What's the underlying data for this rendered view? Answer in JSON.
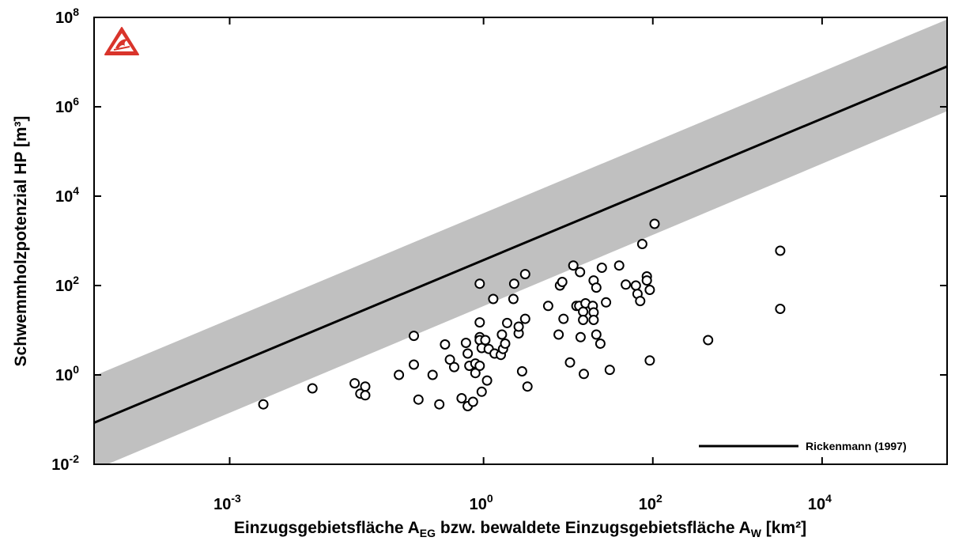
{
  "colors": {
    "band": "#c0c0c0",
    "line": "#000000",
    "marker_stroke": "#000000",
    "logo": "#d9342b"
  },
  "chart_data": {
    "type": "scatter",
    "title": "",
    "xlabel": {
      "parts": [
        {
          "text": "Einzugsgebietsfläche A",
          "sub": false
        },
        {
          "text": "EG",
          "sub": true
        },
        {
          "text": " bzw. bewaldete Einzugsgebietsfläche A",
          "sub": false
        },
        {
          "text": "W",
          "sub": true
        },
        {
          "text": " [km²]",
          "sub": false
        }
      ]
    },
    "ylabel": "Schwemmholzpotenzial HP [m³]",
    "xscale": "log",
    "yscale": "log",
    "xlim": [
      2.5e-05,
      300000
    ],
    "ylim": [
      0.01,
      100000000
    ],
    "xticks": [
      {
        "base": "10",
        "exp": "-3",
        "value": 0.001
      },
      {
        "base": "10",
        "exp": "0",
        "value": 1
      },
      {
        "base": "10",
        "exp": "2",
        "value": 100
      },
      {
        "base": "10",
        "exp": "4",
        "value": 10000
      }
    ],
    "yticks": [
      {
        "base": "10",
        "exp": "-2",
        "value": 0.01
      },
      {
        "base": "10",
        "exp": "0",
        "value": 1
      },
      {
        "base": "10",
        "exp": "2",
        "value": 100
      },
      {
        "base": "10",
        "exp": "4",
        "value": 10000
      },
      {
        "base": "10",
        "exp": "6",
        "value": 1000000
      },
      {
        "base": "10",
        "exp": "8",
        "value": 100000000
      }
    ],
    "grid": false,
    "legend": {
      "position": "bottom-right",
      "entries": [
        {
          "label": "Rickenmann (1997)",
          "style": "line"
        }
      ]
    },
    "reference_line": {
      "name": "Rickenmann (1997)",
      "points": [
        [
          2.5e-05,
          0.085
        ],
        [
          300000,
          8000000
        ]
      ]
    },
    "band": {
      "upper": [
        [
          2.5e-05,
          0.95
        ],
        [
          300000,
          90000000
        ]
      ],
      "lower": [
        [
          2.5e-05,
          0.0075
        ],
        [
          300000,
          800000
        ]
      ]
    },
    "series": [
      {
        "points": [
          [
            0.0025,
            0.22
          ],
          [
            0.0095,
            0.5
          ],
          [
            0.03,
            0.65
          ],
          [
            0.035,
            0.38
          ],
          [
            0.04,
            0.55
          ],
          [
            0.04,
            0.35
          ],
          [
            0.1,
            1.0
          ],
          [
            0.15,
            1.7
          ],
          [
            0.15,
            7.5
          ],
          [
            0.17,
            0.28
          ],
          [
            0.25,
            1.0
          ],
          [
            0.3,
            0.22
          ],
          [
            0.35,
            4.8
          ],
          [
            0.4,
            2.2
          ],
          [
            0.45,
            1.5
          ],
          [
            0.55,
            0.3
          ],
          [
            0.62,
            5.2
          ],
          [
            0.65,
            3.0
          ],
          [
            0.65,
            0.2
          ],
          [
            0.68,
            1.6
          ],
          [
            0.75,
            0.25
          ],
          [
            0.8,
            1.8
          ],
          [
            0.8,
            1.1
          ],
          [
            0.9,
            1.6
          ],
          [
            0.9,
            7.0
          ],
          [
            0.9,
            6.0
          ],
          [
            0.95,
            4.0
          ],
          [
            0.9,
            15.0
          ],
          [
            0.95,
            0.42
          ],
          [
            0.9,
            110.0
          ],
          [
            1.05,
            6.0
          ],
          [
            1.1,
            0.75
          ],
          [
            1.15,
            3.8
          ],
          [
            1.3,
            50.0
          ],
          [
            1.35,
            3.0
          ],
          [
            1.6,
            2.8
          ],
          [
            1.65,
            8.0
          ],
          [
            1.7,
            3.8
          ],
          [
            1.8,
            5.0
          ],
          [
            1.9,
            14.5
          ],
          [
            2.3,
            110.0
          ],
          [
            2.25,
            50.0
          ],
          [
            2.6,
            8.5
          ],
          [
            2.6,
            12.0
          ],
          [
            2.85,
            1.2
          ],
          [
            3.1,
            180.0
          ],
          [
            3.1,
            18.0
          ],
          [
            3.3,
            0.55
          ],
          [
            5.8,
            35.0
          ],
          [
            7.7,
            8.0
          ],
          [
            8.0,
            100.0
          ],
          [
            8.5,
            120.0
          ],
          [
            8.8,
            18.0
          ],
          [
            10.5,
            1.9
          ],
          [
            11.5,
            280.0
          ],
          [
            12.5,
            35.0
          ],
          [
            13.8,
            200.0
          ],
          [
            13.5,
            35.0
          ],
          [
            14.0,
            7.0
          ],
          [
            15.0,
            26.0
          ],
          [
            15.3,
            1.05
          ],
          [
            15.0,
            17.0
          ],
          [
            16.0,
            40.0
          ],
          [
            19.5,
            35.0
          ],
          [
            20.0,
            25.0
          ],
          [
            20.0,
            17.0
          ],
          [
            20.0,
            130.0
          ],
          [
            21.5,
            90.0
          ],
          [
            21.5,
            8.0
          ],
          [
            24.0,
            5.0
          ],
          [
            25.0,
            250.0
          ],
          [
            28.0,
            42.0
          ],
          [
            31.0,
            1.3
          ],
          [
            40.0,
            280.0
          ],
          [
            48.0,
            105.0
          ],
          [
            63.0,
            100.0
          ],
          [
            66.0,
            65.0
          ],
          [
            71.0,
            45.0
          ],
          [
            75.0,
            850.0
          ],
          [
            85.0,
            160.0
          ],
          [
            85.0,
            130.0
          ],
          [
            92.0,
            80.0
          ],
          [
            92.0,
            2.1
          ],
          [
            105.0,
            2400.0
          ],
          [
            450.0,
            6.0
          ],
          [
            3200.0,
            600.0
          ],
          [
            3200.0,
            30.0
          ]
        ]
      }
    ]
  }
}
